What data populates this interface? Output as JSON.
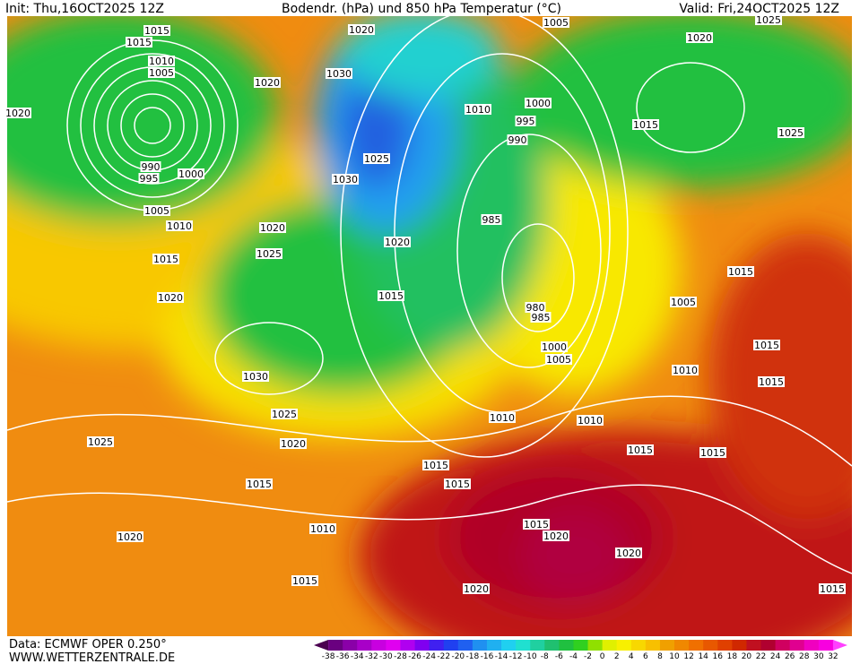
{
  "header": {
    "init": "Init: Thu,16OCT2025 12Z",
    "title": "Bodendr. (hPa) und 850 hPa Temperatur (°C)",
    "valid": "Valid: Fri,24OCT2025 12Z"
  },
  "footer": {
    "data": "Data: ECMWF OPER 0.250°",
    "site": "WWW.WETTERZENTRALE.DE"
  },
  "colorbar": {
    "labels": [
      -38,
      -36,
      -34,
      -32,
      -30,
      -28,
      -26,
      -24,
      -22,
      -20,
      -18,
      -16,
      -14,
      -12,
      -10,
      -8,
      -6,
      -4,
      -2,
      0,
      2,
      4,
      6,
      8,
      10,
      12,
      14,
      16,
      18,
      20,
      22,
      24,
      26,
      28,
      30,
      32
    ],
    "colors": [
      "#4b0050",
      "#6a0080",
      "#8a00a8",
      "#a800c8",
      "#c800e0",
      "#e000f0",
      "#b000f0",
      "#8000f0",
      "#4020f0",
      "#2040f0",
      "#2060f0",
      "#2090f0",
      "#20b0f0",
      "#20d0f0",
      "#20e0d0",
      "#20d0a0",
      "#20c070",
      "#20c040",
      "#30d020",
      "#90e000",
      "#e0f000",
      "#f8f000",
      "#f8d800",
      "#f8c000",
      "#f0a000",
      "#f08800",
      "#f07000",
      "#e85800",
      "#e04000",
      "#d02800",
      "#c01020",
      "#b00030",
      "#d00060",
      "#e00090",
      "#f000c0",
      "#f800e0",
      "#ff40ff"
    ]
  },
  "isobar_labels": [
    "1015",
    "1015",
    "1020",
    "1005",
    "1025",
    "1020",
    "1010",
    "1005",
    "1020",
    "1030",
    "1020",
    "1010",
    "1000",
    "995",
    "990",
    "1015",
    "1025",
    "1025",
    "990",
    "995",
    "1000",
    "1030",
    "1005",
    "1010",
    "985",
    "1020",
    "1020",
    "1015",
    "1025",
    "1015",
    "1020",
    "1015",
    "980",
    "985",
    "1005",
    "1015",
    "1000",
    "1005",
    "1010",
    "1030",
    "1015",
    "1025",
    "1010",
    "1010",
    "1025",
    "1020",
    "1015",
    "1015",
    "1015",
    "1015",
    "1015",
    "1010",
    "1020",
    "1015",
    "1020",
    "1020",
    "1015",
    "1020",
    "1015"
  ]
}
